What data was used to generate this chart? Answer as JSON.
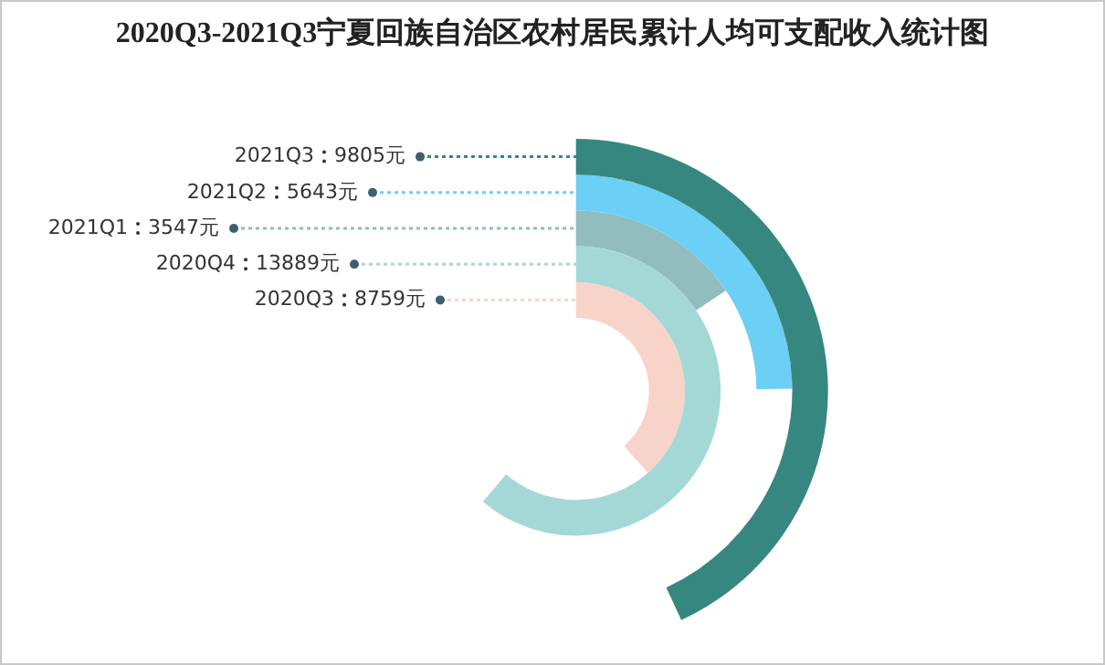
{
  "chart_data": {
    "type": "other",
    "title": "2020Q3-2021Q3宁夏回族自治区农村居民累计人均可支配收入统计图",
    "categories": [
      "2021Q3",
      "2021Q2",
      "2021Q1",
      "2020Q4",
      "2020Q3"
    ],
    "values": [
      9805,
      5643,
      3547,
      13889,
      8759
    ],
    "value_labels": [
      "9805元",
      "5643元",
      "3547元",
      "13889元",
      "8759元"
    ],
    "colors": [
      "#368780",
      "#6bcff6",
      "#91bdbf",
      "#a3d8d6",
      "#f8d3ca"
    ]
  }
}
